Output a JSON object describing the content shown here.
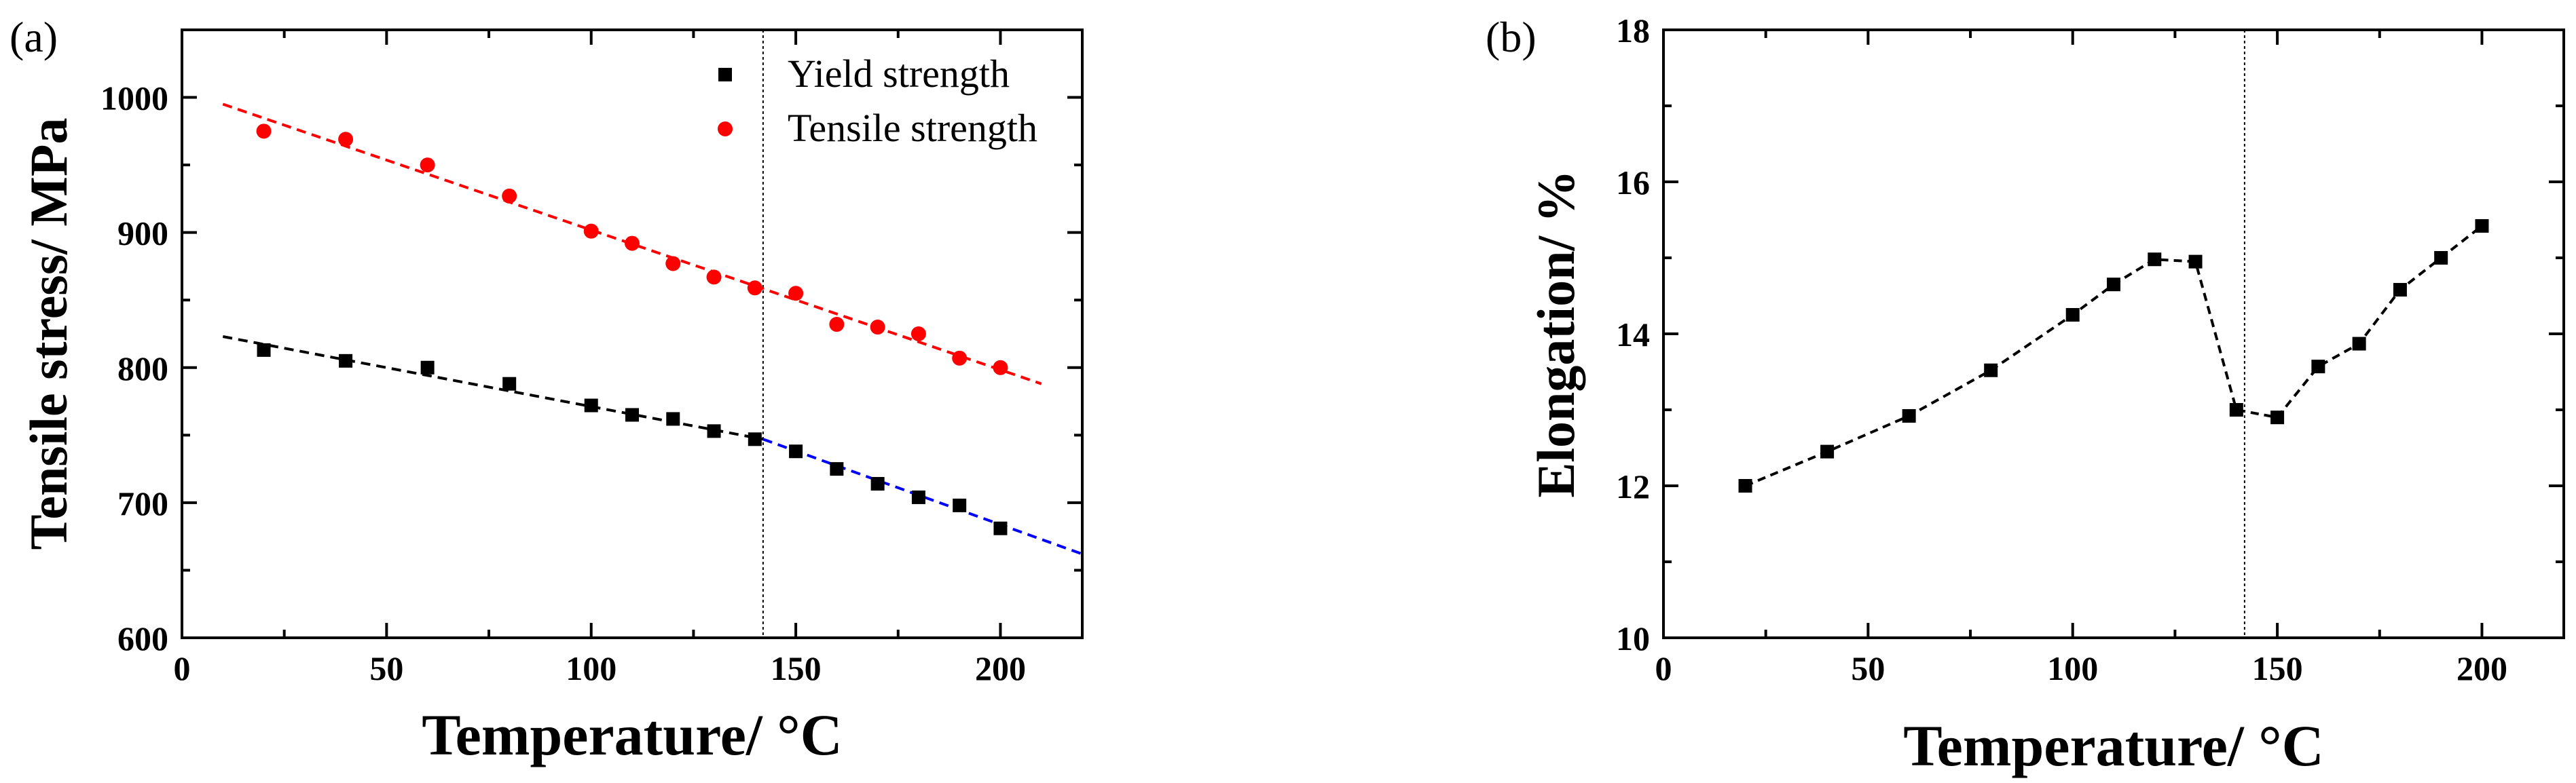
{
  "chart_data": [
    {
      "type": "scatter",
      "panel_label": "(a)",
      "title": "",
      "xlabel": "Temperature/ °C",
      "ylabel": "Tensile stress/ MPa",
      "xlim": [
        0,
        220
      ],
      "ylim": [
        600,
        1050
      ],
      "xticks": [
        0,
        50,
        100,
        150,
        200
      ],
      "yticks": [
        600,
        700,
        800,
        900,
        1000
      ],
      "grid": false,
      "legend_position": "top-right",
      "reference_line_x": 142,
      "series": [
        {
          "name": "Yield strength",
          "marker": "square",
          "color": "#000000",
          "x": [
            20,
            40,
            60,
            80,
            100,
            110,
            120,
            130,
            140,
            150,
            160,
            170,
            180,
            190,
            200
          ],
          "y": [
            813,
            805,
            800,
            788,
            772,
            765,
            762,
            753,
            747,
            738,
            725,
            714,
            704,
            698,
            681
          ]
        },
        {
          "name": "Tensile strength",
          "marker": "circle",
          "color": "#ff0000",
          "x": [
            20,
            40,
            60,
            80,
            100,
            110,
            120,
            130,
            140,
            150,
            160,
            170,
            180,
            190,
            200
          ],
          "y": [
            975,
            969,
            950,
            927,
            901,
            892,
            877,
            867,
            859,
            855,
            832,
            830,
            825,
            807,
            800
          ]
        }
      ],
      "fit_lines": [
        {
          "color": "#000000",
          "x": [
            10,
            142
          ],
          "y": [
            823,
            747
          ]
        },
        {
          "color": "#0000ff",
          "x": [
            142,
            220
          ],
          "y": [
            747,
            662
          ]
        },
        {
          "color": "#ff0000",
          "x": [
            10,
            210
          ],
          "y": [
            995,
            788
          ]
        }
      ]
    },
    {
      "type": "line",
      "panel_label": "(b)",
      "title": "",
      "xlabel": "Temperature/ °C",
      "ylabel": "Elongation/ %",
      "xlim": [
        0,
        220
      ],
      "ylim": [
        10,
        18
      ],
      "xticks": [
        0,
        50,
        100,
        150,
        200
      ],
      "yticks": [
        10,
        12,
        14,
        16,
        18
      ],
      "grid": false,
      "reference_line_x": 142,
      "series": [
        {
          "name": "Elongation",
          "marker": "square",
          "color": "#000000",
          "x": [
            20,
            40,
            60,
            80,
            100,
            110,
            120,
            130,
            140,
            150,
            160,
            170,
            180,
            190,
            200
          ],
          "y": [
            12.0,
            12.45,
            12.92,
            13.52,
            14.25,
            14.65,
            14.98,
            14.95,
            13.0,
            12.9,
            13.57,
            13.87,
            14.58,
            15.0,
            15.42
          ]
        }
      ]
    }
  ]
}
